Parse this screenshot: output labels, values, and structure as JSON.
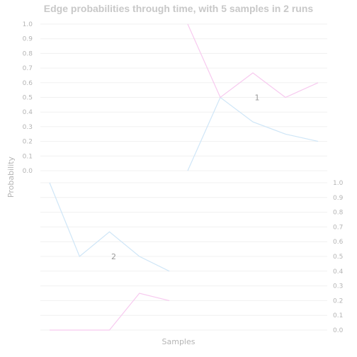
{
  "chart_data": {
    "type": "line",
    "title": "Edge probabilities through time, with 5 samples in 2 runs",
    "xlabel": "Samples",
    "ylabel": "Probability",
    "ylim": [
      0,
      1
    ],
    "yticks": [
      "0.0",
      "0.1",
      "0.2",
      "0.3",
      "0.4",
      "0.5",
      "0.6",
      "0.7",
      "0.8",
      "0.9",
      "1.0"
    ],
    "x": [
      1,
      2,
      3,
      4,
      5
    ],
    "grid": true,
    "colors": {
      "series_a": "#cfe6f7",
      "series_b": "#f7c9ef"
    },
    "panels": [
      {
        "label": "",
        "series": []
      },
      {
        "label": "1",
        "series": [
          {
            "key": "a",
            "values": [
              0.0,
              0.5,
              0.333,
              0.25,
              0.2
            ]
          },
          {
            "key": "b",
            "values": [
              1.0,
              0.5,
              0.667,
              0.5,
              0.6
            ]
          }
        ]
      },
      {
        "label": "2",
        "series": [
          {
            "key": "a",
            "values": [
              1.0,
              0.5,
              0.667,
              0.5,
              0.4
            ]
          },
          {
            "key": "b",
            "values": [
              0.0,
              0.0,
              0.0,
              0.25,
              0.2
            ]
          }
        ]
      },
      {
        "label": "",
        "series": []
      }
    ]
  }
}
